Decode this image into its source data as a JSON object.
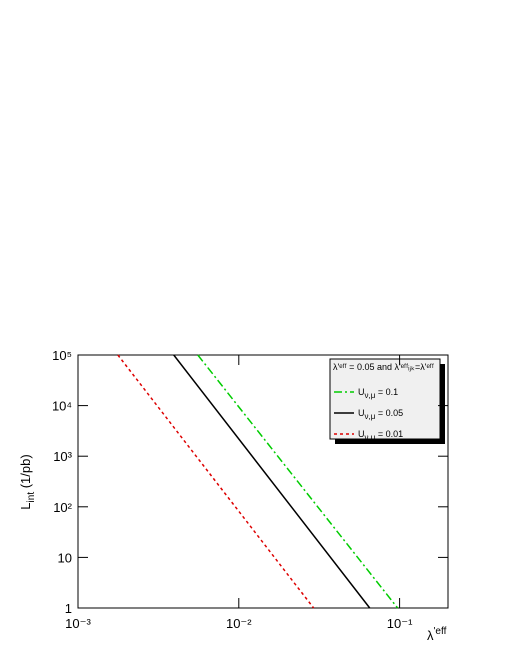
{
  "chart_data": {
    "type": "line",
    "xlabel": {
      "main": "λ",
      "sup": "'eff"
    },
    "ylabel": {
      "main": "L",
      "sub": "int",
      "rest": " (1/pb)"
    },
    "xscale": "log",
    "yscale": "log",
    "xlim": [
      0.001,
      0.2
    ],
    "ylim": [
      1,
      100000
    ],
    "xticks": [
      {
        "value": 0.001,
        "label": "10⁻³"
      },
      {
        "value": 0.01,
        "label": "10⁻²"
      },
      {
        "value": 0.1,
        "label": "10⁻¹"
      }
    ],
    "yticks": [
      1,
      10,
      {
        "value": 100,
        "label": "10²"
      },
      {
        "value": 1000,
        "label": "10³"
      },
      {
        "value": 10000,
        "label": "10⁴"
      },
      {
        "value": 100000,
        "label": "10⁵"
      }
    ],
    "legend_title": "λ'ᵉᶠᶠ = 0.05 and λ'ᵉᶠᶠᵢⱼₖ=λ'ᵉᶠᶠ",
    "series": [
      {
        "name_main": "U",
        "name_sub": "ν,μ",
        "name_rest": " = 0.1",
        "color": "#00cc00",
        "dash": "8 3 2 3",
        "x": [
          0.00556,
          0.0972
        ],
        "values": [
          100000,
          1
        ]
      },
      {
        "name_main": "U",
        "name_sub": "ν,μ",
        "name_rest": " = 0.05",
        "color": "#000000",
        "dash": "none",
        "x": [
          0.00394,
          0.0652
        ],
        "values": [
          100000,
          1
        ]
      },
      {
        "name_main": "U",
        "name_sub": "ν,μ",
        "name_rest": " = 0.01",
        "color": "#dd0000",
        "dash": "3 3",
        "x": [
          0.00177,
          0.0292
        ],
        "values": [
          100000,
          1
        ]
      }
    ]
  }
}
